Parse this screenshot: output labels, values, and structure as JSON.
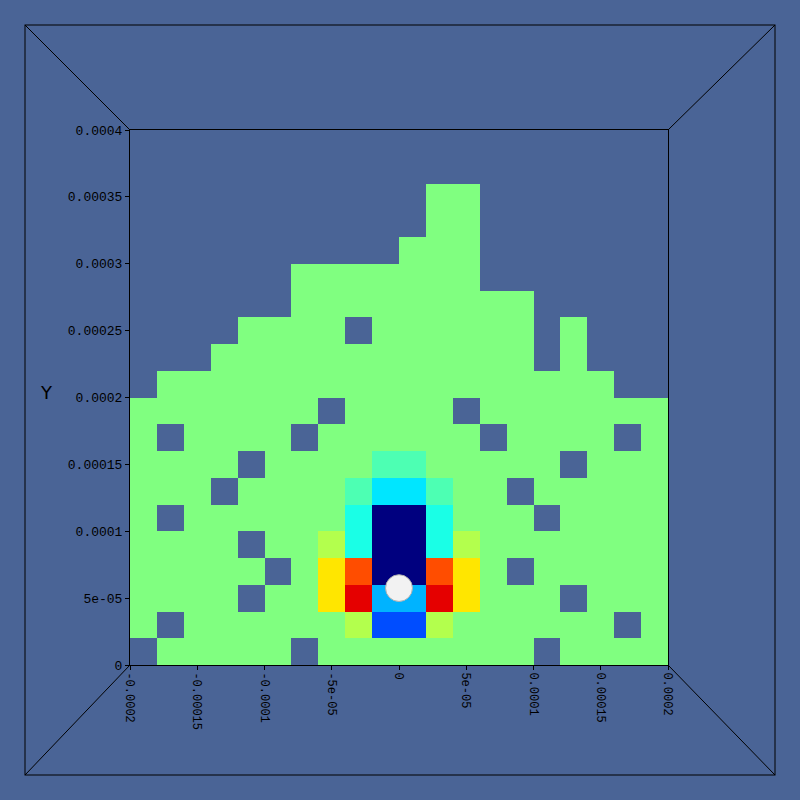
{
  "chart_data": {
    "type": "heatmap",
    "y_label": "Y",
    "x": [
      -0.00019,
      -0.00017,
      -0.00015,
      -0.00013,
      -0.00011,
      -9e-05,
      -7e-05,
      -5e-05,
      -3e-05,
      -1e-05,
      1e-05,
      3e-05,
      5e-05,
      7e-05,
      9e-05,
      0.00011,
      0.00013,
      0.00015,
      0.00017,
      0.00019
    ],
    "y": [
      1e-05,
      3e-05,
      5e-05,
      7e-05,
      9e-05,
      0.00011,
      0.00013,
      0.00015,
      0.00017,
      0.00019,
      0.00021,
      0.00023,
      0.00025,
      0.00027,
      0.00029,
      0.00031,
      0.00033,
      0.00035,
      0.00037,
      0.00039
    ],
    "z": [
      [
        null,
        0,
        0,
        0,
        0,
        0,
        null,
        0,
        0,
        0,
        0,
        0,
        0,
        0,
        0,
        null,
        0,
        0,
        0,
        0
      ],
      [
        0,
        null,
        0,
        0,
        0,
        0,
        0,
        0,
        0.1,
        -0.6,
        -0.6,
        0.1,
        0,
        0,
        0,
        0,
        0,
        0,
        null,
        0
      ],
      [
        0,
        0,
        0,
        0,
        null,
        0,
        0,
        0.3,
        0.8,
        -0.4,
        -0.4,
        0.8,
        0.3,
        0,
        0,
        0,
        null,
        0,
        0,
        0
      ],
      [
        0,
        0,
        0,
        0,
        0,
        null,
        0,
        0.3,
        0.6,
        -1,
        -1,
        0.6,
        0.3,
        0,
        null,
        0,
        0,
        0,
        0,
        0
      ],
      [
        0,
        0,
        0,
        0,
        null,
        0,
        0,
        0.1,
        -0.2,
        -1,
        -1,
        -0.2,
        0.1,
        0,
        0,
        0,
        0,
        0,
        0,
        0
      ],
      [
        0,
        null,
        0,
        0,
        0,
        0,
        0,
        0,
        -0.2,
        -1,
        -1,
        -0.2,
        0,
        0,
        0,
        null,
        0,
        0,
        0,
        0
      ],
      [
        0,
        0,
        0,
        null,
        0,
        0,
        0,
        0,
        -0.1,
        -0.3,
        -0.3,
        -0.1,
        0,
        0,
        null,
        0,
        0,
        0,
        0,
        0
      ],
      [
        0,
        0,
        0,
        0,
        null,
        0,
        0,
        0,
        0,
        -0.1,
        -0.1,
        0,
        0,
        0,
        0,
        0,
        null,
        0,
        0,
        0
      ],
      [
        0,
        null,
        0,
        0,
        0,
        0,
        null,
        0,
        0,
        0,
        0,
        0,
        0,
        null,
        0,
        0,
        0,
        0,
        null,
        0
      ],
      [
        0,
        0,
        0,
        0,
        0,
        0,
        0,
        null,
        0,
        0,
        0,
        0,
        null,
        0,
        0,
        0,
        0,
        0,
        0,
        0
      ],
      [
        null,
        0,
        0,
        0,
        0,
        0,
        0,
        0,
        0,
        0,
        0,
        0,
        0,
        0,
        0,
        0,
        0,
        0,
        null,
        null
      ],
      [
        null,
        null,
        null,
        0,
        0,
        0,
        0,
        0,
        0,
        0,
        0,
        0,
        0,
        0,
        0,
        null,
        0,
        null,
        null,
        null
      ],
      [
        null,
        null,
        null,
        null,
        0,
        0,
        0,
        0,
        null,
        0,
        0,
        0,
        0,
        0,
        0,
        null,
        0,
        null,
        null,
        null
      ],
      [
        null,
        null,
        null,
        null,
        null,
        null,
        0,
        0,
        0,
        0,
        0,
        0,
        0,
        0,
        0,
        null,
        null,
        null,
        null,
        null
      ],
      [
        null,
        null,
        null,
        null,
        null,
        null,
        0,
        0,
        0,
        0,
        0,
        0,
        0,
        null,
        null,
        null,
        null,
        null,
        null,
        null
      ],
      [
        null,
        null,
        null,
        null,
        null,
        null,
        null,
        null,
        null,
        null,
        0,
        0,
        0,
        null,
        null,
        null,
        null,
        null,
        null,
        null
      ],
      [
        null,
        null,
        null,
        null,
        null,
        null,
        null,
        null,
        null,
        null,
        null,
        0,
        0,
        null,
        null,
        null,
        null,
        null,
        null,
        null
      ],
      [
        null,
        null,
        null,
        null,
        null,
        null,
        null,
        null,
        null,
        null,
        null,
        0,
        0,
        null,
        null,
        null,
        null,
        null,
        null,
        null
      ],
      [
        null,
        null,
        null,
        null,
        null,
        null,
        null,
        null,
        null,
        null,
        null,
        null,
        null,
        null,
        null,
        null,
        null,
        null,
        null,
        null
      ],
      [
        null,
        null,
        null,
        null,
        null,
        null,
        null,
        null,
        null,
        null,
        null,
        null,
        null,
        null,
        null,
        null,
        null,
        null,
        null,
        null
      ]
    ],
    "zlim": [
      -1,
      1
    ],
    "xlim": [
      -0.0002,
      0.0002
    ],
    "ylim": [
      0,
      0.0004
    ],
    "xticks": [
      -0.0002,
      -0.00015,
      -0.0001,
      {
        "value": -5e-05,
        "label": "-5e-05"
      },
      0,
      {
        "value": 5e-05,
        "label": "5e-05"
      },
      0.0001,
      0.00015,
      0.0002
    ],
    "yticks": [
      0,
      {
        "value": 5e-05,
        "label": "5e-05"
      },
      0.0001,
      0.00015,
      0.0002,
      0.00025,
      0.0003,
      0.00035,
      0.0004
    ],
    "sphere": {
      "x": 0,
      "y": 5.75e-05,
      "radius": 1e-05
    }
  }
}
